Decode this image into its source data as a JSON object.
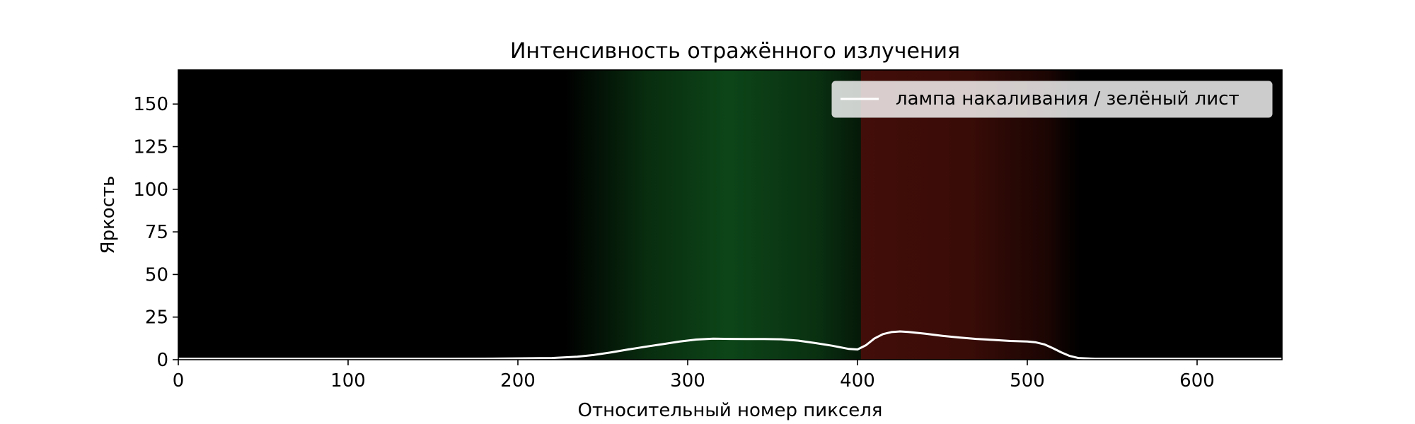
{
  "chart_data": {
    "type": "line",
    "title": "Интенсивность отражённого излучения",
    "xlabel": "Относительный номер пикселя",
    "ylabel": "Яркость",
    "xlim": [
      0,
      650
    ],
    "ylim": [
      0,
      170
    ],
    "xticks": [
      0,
      100,
      200,
      300,
      400,
      500,
      600
    ],
    "yticks": [
      0,
      25,
      50,
      75,
      100,
      125,
      150
    ],
    "grid": false,
    "legend": "top-right",
    "background": "black spectrum image (green band ~230–400, red band ~400–530)",
    "series": [
      {
        "name": "лампа накаливания / зелёный лист",
        "color": "#ffffff",
        "x": [
          0,
          50,
          100,
          150,
          180,
          200,
          220,
          235,
          245,
          255,
          265,
          275,
          285,
          295,
          305,
          315,
          325,
          335,
          345,
          355,
          365,
          375,
          385,
          395,
          400,
          405,
          410,
          415,
          420,
          425,
          430,
          440,
          450,
          460,
          470,
          480,
          490,
          500,
          505,
          510,
          515,
          520,
          525,
          530,
          540,
          560,
          600,
          650
        ],
        "y": [
          0.5,
          0.5,
          0.5,
          0.5,
          0.6,
          0.8,
          1,
          1.8,
          2.8,
          4.3,
          6,
          7.6,
          9.1,
          10.6,
          11.8,
          12.3,
          12.2,
          12.1,
          12.1,
          12,
          11.2,
          9.8,
          8.2,
          6.3,
          6,
          8.5,
          12.5,
          15,
          16.2,
          16.6,
          16.3,
          15.2,
          14,
          13,
          12.2,
          11.6,
          11,
          10.7,
          10.2,
          9,
          6.8,
          4.3,
          2.2,
          1,
          0.5,
          0.5,
          0.5,
          0.5
        ]
      }
    ]
  }
}
